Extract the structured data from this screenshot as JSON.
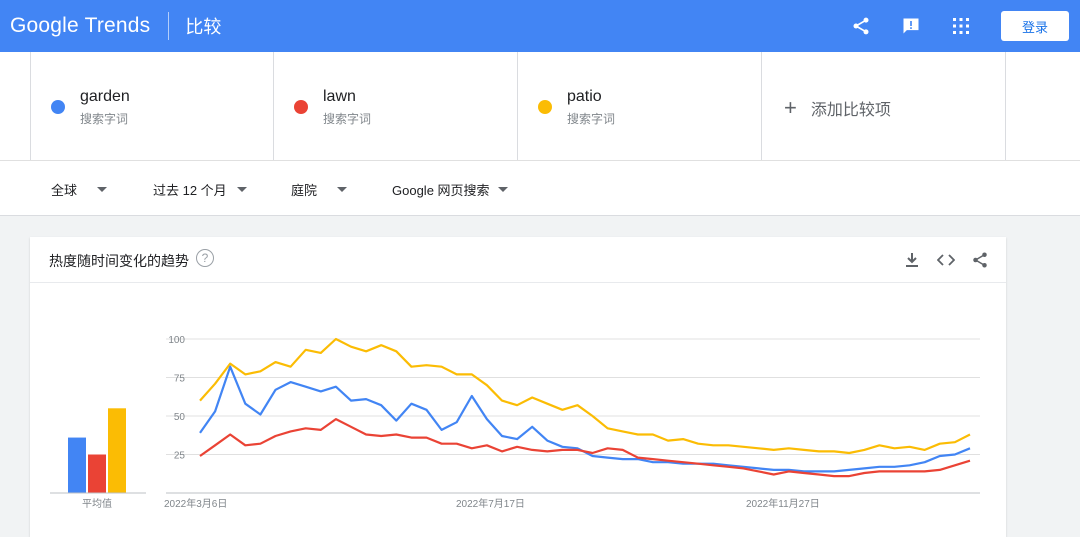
{
  "header": {
    "logo_text": "Google Trends",
    "page_title": "比较",
    "login_label": "登录",
    "icons": [
      "share-icon",
      "feedback-icon",
      "apps-icon"
    ]
  },
  "terms": [
    {
      "name": "garden",
      "sub": "搜索字词",
      "color": "#4285f4"
    },
    {
      "name": "lawn",
      "sub": "搜索字词",
      "color": "#ea4335"
    },
    {
      "name": "patio",
      "sub": "搜索字词",
      "color": "#fbbc04"
    }
  ],
  "add_term_label": "添加比较项",
  "filters": {
    "region": "全球",
    "time": "过去 12 个月",
    "category": "庭院",
    "search_type": "Google 网页搜索"
  },
  "card": {
    "title": "热度随时间变化的趋势",
    "help_glyph": "?",
    "actions": [
      "download-icon",
      "embed-icon",
      "share-icon"
    ]
  },
  "chart_data": {
    "type": "line",
    "y_ticks": [
      "100",
      "75",
      "50",
      "25"
    ],
    "ylim": [
      0,
      100
    ],
    "x_labels": [
      "2022年3月6日",
      "2022年7月17日",
      "2022年11月27日"
    ],
    "averages_label": "平均值",
    "averages": [
      {
        "name": "garden",
        "value": 36,
        "color": "#4285f4"
      },
      {
        "name": "lawn",
        "value": 25,
        "color": "#ea4335"
      },
      {
        "name": "patio",
        "value": 55,
        "color": "#fbbc04"
      }
    ],
    "series": [
      {
        "name": "patio",
        "color": "#fbbc04",
        "values": [
          60,
          71,
          84,
          77,
          79,
          85,
          82,
          93,
          91,
          100,
          95,
          92,
          96,
          92,
          82,
          83,
          82,
          77,
          77,
          70,
          60,
          57,
          62,
          58,
          54,
          57,
          50,
          42,
          40,
          38,
          38,
          34,
          35,
          32,
          31,
          31,
          30,
          29,
          28,
          29,
          28,
          27,
          27,
          26,
          28,
          31,
          29,
          30,
          28,
          32,
          33,
          38
        ]
      },
      {
        "name": "garden",
        "color": "#4285f4",
        "values": [
          39,
          53,
          82,
          58,
          51,
          67,
          72,
          69,
          66,
          69,
          60,
          61,
          57,
          47,
          58,
          54,
          41,
          46,
          63,
          48,
          37,
          35,
          43,
          34,
          30,
          29,
          24,
          23,
          22,
          22,
          20,
          20,
          19,
          19,
          19,
          18,
          17,
          16,
          15,
          15,
          14,
          14,
          14,
          15,
          16,
          17,
          17,
          18,
          20,
          24,
          25,
          29
        ]
      },
      {
        "name": "lawn",
        "color": "#ea4335",
        "values": [
          24,
          31,
          38,
          31,
          32,
          37,
          40,
          42,
          41,
          48,
          43,
          38,
          37,
          38,
          36,
          36,
          32,
          32,
          29,
          31,
          27,
          30,
          28,
          27,
          28,
          28,
          26,
          29,
          28,
          23,
          22,
          21,
          20,
          19,
          18,
          17,
          16,
          14,
          12,
          14,
          13,
          12,
          11,
          11,
          13,
          14,
          14,
          14,
          14,
          15,
          18,
          21
        ]
      }
    ]
  }
}
